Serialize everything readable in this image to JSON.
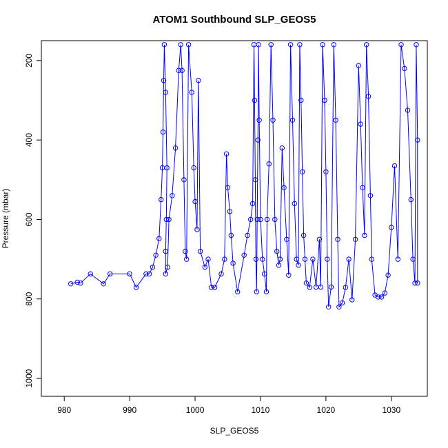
{
  "chart_data": {
    "type": "line",
    "title": "ATOM1 Southbound SLP_GEOS5",
    "xlabel": "SLP_GEOS5",
    "ylabel": "Pressure (mbar)",
    "xlim": [
      976.5,
      1035.5
    ],
    "ylim": [
      1045,
      150
    ],
    "y_reversed": true,
    "x_ticks": [
      980,
      990,
      1000,
      1010,
      1020,
      1030
    ],
    "y_ticks": [
      200,
      400,
      600,
      800,
      1000
    ],
    "grid": false,
    "color": "#0000ff",
    "marker": "open-circle",
    "series": [
      {
        "points": [
          [
            981,
            762
          ],
          [
            982,
            758
          ],
          [
            982.5,
            760
          ],
          [
            984,
            737
          ],
          [
            986,
            762
          ],
          [
            987,
            737
          ],
          [
            990,
            737
          ],
          [
            991,
            771
          ],
          [
            992.5,
            737
          ],
          [
            993,
            737
          ],
          [
            993.5,
            720
          ],
          [
            994,
            690
          ],
          [
            994.5,
            648
          ],
          [
            994.8,
            550
          ],
          [
            995,
            470
          ],
          [
            995.1,
            380
          ],
          [
            995.2,
            250
          ],
          [
            995.3,
            160
          ],
          [
            995.5,
            280
          ],
          [
            995.7,
            470
          ],
          [
            995.6,
            600
          ],
          [
            995.5,
            680
          ],
          [
            995.5,
            737
          ],
          [
            995.8,
            720
          ],
          [
            996,
            600
          ],
          [
            996.5,
            540
          ],
          [
            997,
            420
          ],
          [
            997.5,
            225
          ],
          [
            997.8,
            160
          ],
          [
            998,
            225
          ],
          [
            998.3,
            500
          ],
          [
            998.5,
            680
          ],
          [
            998.7,
            700
          ],
          [
            999,
            160
          ],
          [
            999.5,
            280
          ],
          [
            999.8,
            470
          ],
          [
            1000,
            555
          ],
          [
            1000.3,
            625
          ],
          [
            1000.5,
            250
          ],
          [
            1000.8,
            680
          ],
          [
            1001.5,
            720
          ],
          [
            1002,
            700
          ],
          [
            1002.5,
            771
          ],
          [
            1003,
            771
          ],
          [
            1004,
            737
          ],
          [
            1004.5,
            700
          ],
          [
            1004.8,
            435
          ],
          [
            1005,
            520
          ],
          [
            1005.3,
            580
          ],
          [
            1005.5,
            640
          ],
          [
            1005.8,
            710
          ],
          [
            1006.5,
            782
          ],
          [
            1007.5,
            690
          ],
          [
            1008,
            640
          ],
          [
            1008.5,
            600
          ],
          [
            1008.8,
            560
          ],
          [
            1009,
            160
          ],
          [
            1009.1,
            300
          ],
          [
            1009.2,
            500
          ],
          [
            1009.3,
            700
          ],
          [
            1009.4,
            782
          ],
          [
            1009.5,
            600
          ],
          [
            1009.6,
            400
          ],
          [
            1009.7,
            160
          ],
          [
            1009.8,
            350
          ],
          [
            1010,
            600
          ],
          [
            1010.3,
            700
          ],
          [
            1010.6,
            737
          ],
          [
            1010.9,
            782
          ],
          [
            1011,
            600
          ],
          [
            1011.3,
            460
          ],
          [
            1011.6,
            160
          ],
          [
            1011.9,
            350
          ],
          [
            1012.2,
            600
          ],
          [
            1012.5,
            680
          ],
          [
            1012.8,
            715
          ],
          [
            1013,
            700
          ],
          [
            1013.3,
            420
          ],
          [
            1013.6,
            520
          ],
          [
            1014,
            650
          ],
          [
            1014.3,
            740
          ],
          [
            1014.6,
            160
          ],
          [
            1014.9,
            350
          ],
          [
            1015.2,
            560
          ],
          [
            1015.5,
            700
          ],
          [
            1015.8,
            715
          ],
          [
            1016,
            160
          ],
          [
            1016.2,
            300
          ],
          [
            1016.4,
            480
          ],
          [
            1016.6,
            640
          ],
          [
            1016.8,
            700
          ],
          [
            1017,
            760
          ],
          [
            1017.5,
            771
          ],
          [
            1018,
            700
          ],
          [
            1018.5,
            770
          ],
          [
            1019,
            650
          ],
          [
            1019.2,
            770
          ],
          [
            1019.5,
            160
          ],
          [
            1019.8,
            300
          ],
          [
            1020,
            480
          ],
          [
            1020.2,
            700
          ],
          [
            1020.4,
            820
          ],
          [
            1020.8,
            770
          ],
          [
            1021.2,
            160
          ],
          [
            1021.5,
            350
          ],
          [
            1021.8,
            650
          ],
          [
            1022,
            820
          ],
          [
            1022.5,
            810
          ],
          [
            1023,
            771
          ],
          [
            1023.5,
            700
          ],
          [
            1024,
            802
          ],
          [
            1024.5,
            650
          ],
          [
            1025,
            213
          ],
          [
            1025.3,
            360
          ],
          [
            1025.6,
            520
          ],
          [
            1025.9,
            640
          ],
          [
            1026.2,
            160
          ],
          [
            1026.5,
            290
          ],
          [
            1026.8,
            540
          ],
          [
            1027,
            700
          ],
          [
            1027.5,
            790
          ],
          [
            1028,
            795
          ],
          [
            1028.5,
            795
          ],
          [
            1029,
            785
          ],
          [
            1029.5,
            740
          ],
          [
            1030,
            620
          ],
          [
            1030.5,
            465
          ],
          [
            1031,
            700
          ],
          [
            1031.5,
            160
          ],
          [
            1032,
            220
          ],
          [
            1032.5,
            325
          ],
          [
            1033,
            550
          ],
          [
            1033.3,
            700
          ],
          [
            1033.6,
            760
          ],
          [
            1033.8,
            160
          ],
          [
            1034,
            400
          ],
          [
            1034,
            760
          ]
        ]
      }
    ]
  }
}
